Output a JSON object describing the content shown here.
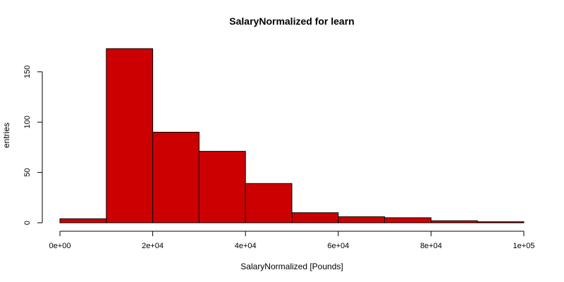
{
  "chart_data": {
    "type": "bar",
    "title": "SalaryNormalized for learn",
    "xlabel": "SalaryNormalized [Pounds]",
    "ylabel": "entries",
    "bins": [
      {
        "from": 0,
        "to": 10000,
        "count": 4
      },
      {
        "from": 10000,
        "to": 20000,
        "count": 173
      },
      {
        "from": 20000,
        "to": 30000,
        "count": 90
      },
      {
        "from": 30000,
        "to": 40000,
        "count": 71
      },
      {
        "from": 40000,
        "to": 50000,
        "count": 39
      },
      {
        "from": 50000,
        "to": 60000,
        "count": 10
      },
      {
        "from": 60000,
        "to": 70000,
        "count": 6
      },
      {
        "from": 70000,
        "to": 80000,
        "count": 5
      },
      {
        "from": 80000,
        "to": 90000,
        "count": 2
      },
      {
        "from": 90000,
        "to": 100000,
        "count": 1
      }
    ],
    "xlim": [
      0,
      100000
    ],
    "ylim": [
      0,
      173
    ],
    "x_ticks": [
      {
        "value": 0,
        "label": "0e+00"
      },
      {
        "value": 20000,
        "label": "2e+04"
      },
      {
        "value": 40000,
        "label": "4e+04"
      },
      {
        "value": 60000,
        "label": "6e+04"
      },
      {
        "value": 80000,
        "label": "8e+04"
      },
      {
        "value": 100000,
        "label": "1e+05"
      }
    ],
    "y_ticks": [
      {
        "value": 0,
        "label": "0"
      },
      {
        "value": 50,
        "label": "50"
      },
      {
        "value": 100,
        "label": "100"
      },
      {
        "value": 150,
        "label": "150"
      }
    ],
    "bar_color": "#cc0000",
    "bar_stroke": "#000000",
    "grid": false
  }
}
